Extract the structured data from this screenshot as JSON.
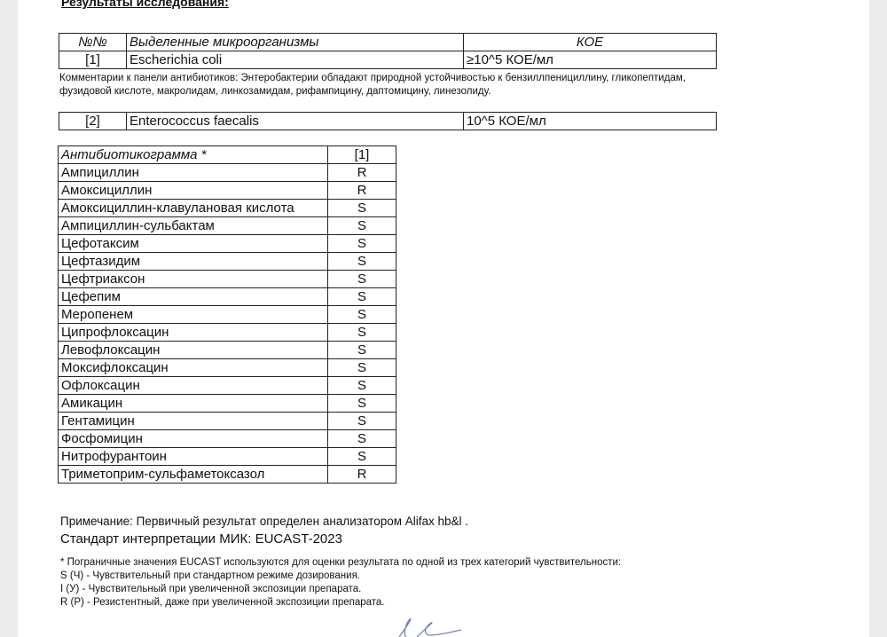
{
  "title": "Результаты исследования:",
  "organisms_table": {
    "headers": [
      "№№",
      "Выделенные микроорганизмы",
      "КОЕ"
    ],
    "rows": [
      {
        "num": "[1]",
        "name": "Escherichia  coli",
        "cfu": "≥10^5 КОЕ/мл"
      }
    ]
  },
  "comment_line1": "Комментарии к панели антибиотиков: Энтеробактерии обладают природной устойчивостью к бензиллпенициллину, гликопептидам,",
  "comment_line2": "фузидовой кислоте, макролидам, линкозамидам, рифампицину, даптомицину, линезолиду.",
  "organism2": {
    "num": "[2]",
    "name": "Enterococcus faecalis",
    "cfu": "10^5 КОЕ/мл"
  },
  "antibiogram": {
    "header": "Антибиотикограмма *",
    "column": "[1]",
    "rows": [
      {
        "drug": "Ампициллин",
        "result": "R"
      },
      {
        "drug": "Амоксициллин",
        "result": "R"
      },
      {
        "drug": "Амоксициллин-клавулановая кислота",
        "result": "S"
      },
      {
        "drug": "Ампициллин-сульбактам",
        "result": "S"
      },
      {
        "drug": "Цефотаксим",
        "result": "S"
      },
      {
        "drug": "Цефтазидим",
        "result": "S"
      },
      {
        "drug": "Цефтриаксон",
        "result": "S"
      },
      {
        "drug": "Цефепим",
        "result": "S"
      },
      {
        "drug": "Меропенем",
        "result": "S"
      },
      {
        "drug": "Ципрофлоксацин",
        "result": "S"
      },
      {
        "drug": "Левофлоксацин",
        "result": "S"
      },
      {
        "drug": "Моксифлоксацин",
        "result": "S"
      },
      {
        "drug": "Офлоксацин",
        "result": "S"
      },
      {
        "drug": "Амикацин",
        "result": "S"
      },
      {
        "drug": "Гентамицин",
        "result": "S"
      },
      {
        "drug": "Фосфомицин",
        "result": "S"
      },
      {
        "drug": "Нитрофурантоин",
        "result": "S"
      },
      {
        "drug": "Триметоприм-сульфаметоксазол",
        "result": "R"
      }
    ]
  },
  "note": "Примечание: Первичный результат определен анализатором Alifax hb&l .",
  "standard": "Стандарт интерпретации МИК: EUCAST-2023",
  "legend": [
    "* Пограничные значения EUCAST используются для оценки результата по одной из трех категорий чувствительности:",
    "S (Ч) - Чувствительный при стандартном режиме дозирования.",
    "I (У) - Чувствительный при увеличенной экспозиции препарата.",
    "R (Р) - Резистентный, даже при увеличенной экспозиции препарата."
  ]
}
